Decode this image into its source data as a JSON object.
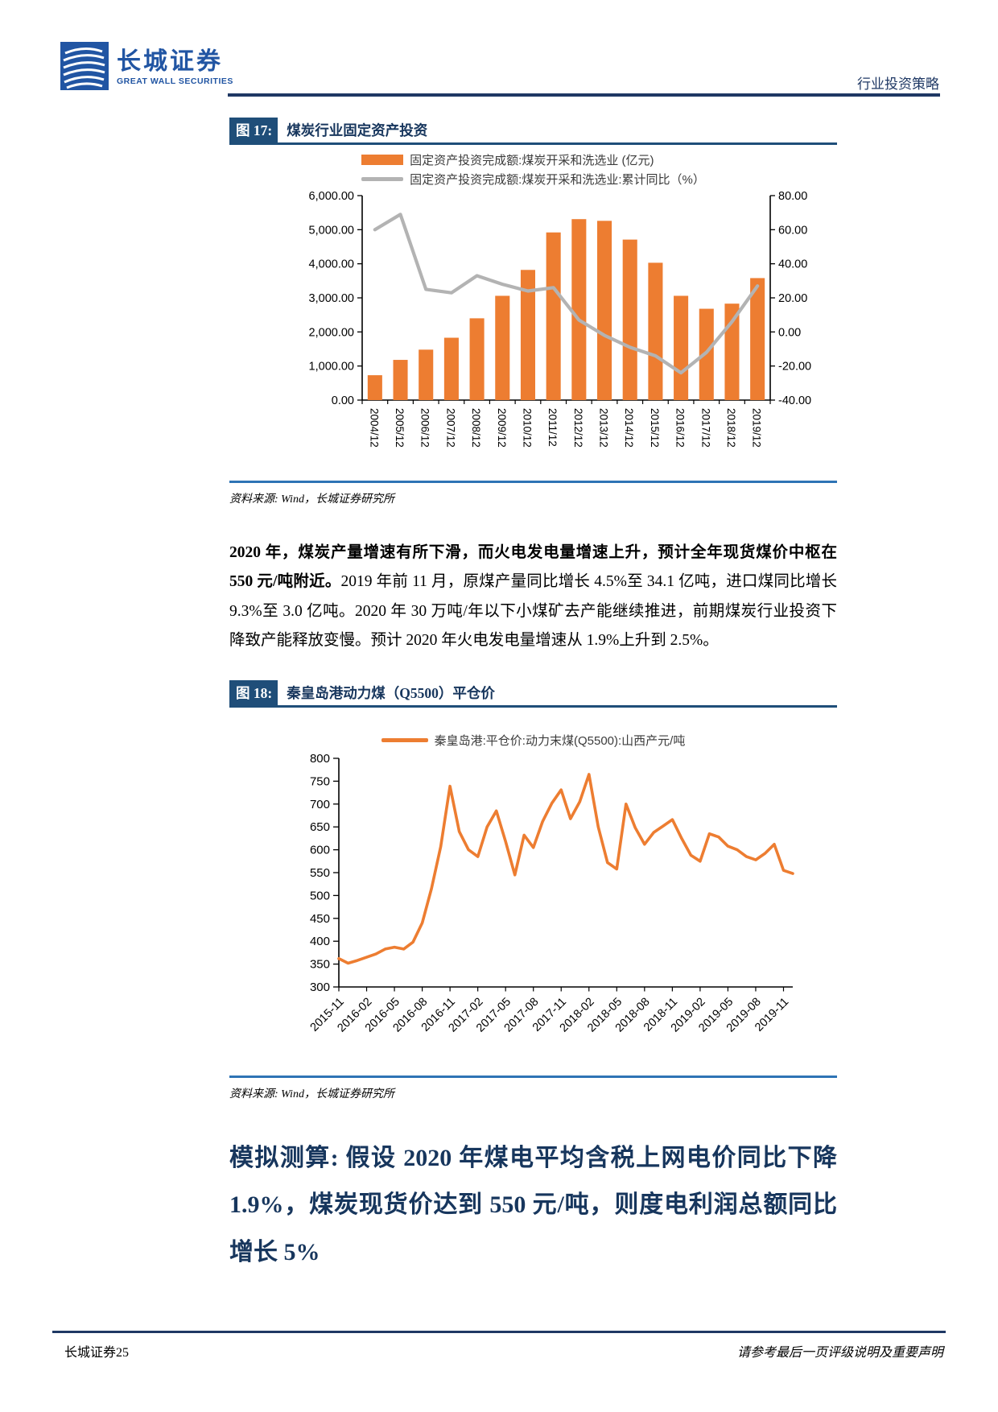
{
  "header": {
    "brand_cn": "长城证券",
    "brand_en": "GREAT WALL SECURITIES",
    "doc_type": "行业投资策略"
  },
  "figure17": {
    "tag": "图 17:",
    "title": "煤炭行业固定资产投资",
    "legend": [
      "固定资产投资完成额:煤炭开采和洗选业 (亿元)",
      "固定资产投资完成额:煤炭开采和洗选业:累计同比（%）"
    ],
    "source": "资料来源: Wind，长城证券研究所"
  },
  "paragraph": {
    "bold": "2020 年，煤炭产量增速有所下滑，而火电发电量增速上升，预计全年现货煤价中枢在 550 元/吨附近。",
    "rest": "2019 年前 11 月，原煤产量同比增长 4.5%至 34.1 亿吨，进口煤同比增长 9.3%至 3.0 亿吨。2020 年 30 万吨/年以下小煤矿去产能继续推进，前期煤炭行业投资下降致产能释放变慢。预计 2020 年火电发电量增速从 1.9%上升到 2.5%。"
  },
  "figure18": {
    "tag": "图 18:",
    "title": "秦皇岛港动力煤（Q5500）平仓价",
    "legend": "秦皇岛港:平仓价:动力末煤(Q5500):山西产元/吨",
    "source": "资料来源: Wind，长城证券研究所"
  },
  "heading": "模拟测算: 假设 2020 年煤电平均含税上网电价同比下降 1.9%，煤炭现货价达到 550 元/吨，则度电利润总额同比增长 5%",
  "footer": {
    "left": "长城证券25",
    "right": "请参考最后一页评级说明及重要声明"
  },
  "colors": {
    "accent_orange": "#ED7D31",
    "line_gray": "#B3B3B3",
    "navy": "#17365D",
    "titlebar_blue": "#1F4E79",
    "rule_blue": "#2E74B5",
    "brand_blue": "#2155A3"
  },
  "chart_data": [
    {
      "type": "bar",
      "title": "煤炭行业固定资产投资",
      "categories": [
        "2004/12",
        "2005/12",
        "2006/12",
        "2007/12",
        "2008/12",
        "2009/12",
        "2010/12",
        "2011/12",
        "2012/12",
        "2013/12",
        "2014/12",
        "2015/12",
        "2016/12",
        "2017/12",
        "2018/12",
        "2019/12"
      ],
      "series": [
        {
          "name": "固定资产投资完成额:煤炭开采和洗选业 (亿元)",
          "type": "bar",
          "axis": "left",
          "color": "#ED7D31",
          "values": [
            730,
            1180,
            1480,
            1830,
            2400,
            3060,
            3820,
            4920,
            5310,
            5260,
            4710,
            4030,
            3060,
            2680,
            2830,
            3580
          ]
        },
        {
          "name": "固定资产投资完成额:煤炭开采和洗选业:累计同比（%）",
          "type": "line",
          "axis": "right",
          "color": "#B3B3B3",
          "values": [
            60,
            69,
            25,
            23,
            33,
            28,
            24,
            26,
            7,
            -2,
            -9,
            -14,
            -24,
            -12,
            6,
            27
          ]
        }
      ],
      "left_axis": {
        "min": 0,
        "max": 6000,
        "ticks": [
          "6,000.00",
          "5,000.00",
          "4,000.00",
          "3,000.00",
          "2,000.00",
          "1,000.00",
          "0.00"
        ]
      },
      "right_axis": {
        "min": -40,
        "max": 80,
        "ticks": [
          "80.00",
          "60.00",
          "40.00",
          "20.00",
          "0.00",
          "-20.00",
          "-40.00"
        ]
      },
      "legend_position": "top",
      "grid": false
    },
    {
      "type": "line",
      "title": "秦皇岛港动力煤（Q5500）平仓价",
      "series_name": "秦皇岛港:平仓价:动力末煤(Q5500):山西产元/吨",
      "color": "#ED7D31",
      "x": [
        "2015-11",
        "2015-12",
        "2016-01",
        "2016-02",
        "2016-03",
        "2016-04",
        "2016-05",
        "2016-06",
        "2016-07",
        "2016-08",
        "2016-09",
        "2016-10",
        "2016-11",
        "2016-12",
        "2017-01",
        "2017-02",
        "2017-03",
        "2017-04",
        "2017-05",
        "2017-06",
        "2017-07",
        "2017-08",
        "2017-09",
        "2017-10",
        "2017-11",
        "2017-12",
        "2018-01",
        "2018-02",
        "2018-03",
        "2018-04",
        "2018-05",
        "2018-06",
        "2018-07",
        "2018-08",
        "2018-09",
        "2018-10",
        "2018-11",
        "2018-12",
        "2019-01",
        "2019-02",
        "2019-03",
        "2019-04",
        "2019-05",
        "2019-06",
        "2019-07",
        "2019-08",
        "2019-09",
        "2019-10",
        "2019-11",
        "2019-12"
      ],
      "values": [
        362,
        352,
        358,
        365,
        372,
        383,
        387,
        383,
        398,
        440,
        515,
        607,
        739,
        640,
        600,
        585,
        650,
        685,
        618,
        545,
        632,
        605,
        662,
        702,
        731,
        668,
        705,
        765,
        650,
        572,
        558,
        700,
        648,
        612,
        638,
        652,
        666,
        625,
        588,
        575,
        635,
        628,
        608,
        600,
        585,
        578,
        592,
        612,
        555,
        548
      ],
      "ylim": [
        300,
        800
      ],
      "y_ticks": [
        "800",
        "750",
        "700",
        "650",
        "600",
        "550",
        "500",
        "450",
        "400",
        "350",
        "300"
      ],
      "x_tick_every": 3,
      "legend_position": "top",
      "grid": false
    }
  ]
}
